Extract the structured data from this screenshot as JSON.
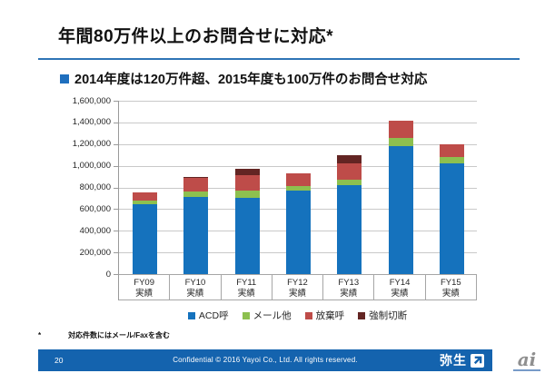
{
  "slide": {
    "title": "年間80万件以上のお問合せに対応*",
    "subtitle": "2014年度は120万件超、2015年度も100万件のお問合せ対応",
    "footnote_mark": "*",
    "footnote": "対応件数にはメール/Faxを含む",
    "footer": {
      "page_number": "20",
      "confidential": "Confidential  © 2016 Yayoi Co., Ltd.  All rights reserved.",
      "brand_logo_text": "弥生"
    },
    "watermark": "ai"
  },
  "colors": {
    "title_rule": "#2e74b5",
    "subtitle_bullet": "#1f6fbe",
    "footer_bar": "#1463ae",
    "gridline": "#c9c9c9",
    "axis": "#9a9a9a"
  },
  "chart_data": {
    "type": "bar",
    "stacked": true,
    "title": "",
    "xlabel": "",
    "ylabel": "",
    "categories": [
      "FY09",
      "FY10",
      "FY11",
      "FY12",
      "FY13",
      "FY14",
      "FY15"
    ],
    "category_sublabel": "実績",
    "series": [
      {
        "name": "ACD呼",
        "color": "#1572bd",
        "values": [
          645000,
          715000,
          700000,
          770000,
          820000,
          1180000,
          1025000
        ]
      },
      {
        "name": "メール他",
        "color": "#8dc04f",
        "values": [
          35000,
          50000,
          75000,
          40000,
          50000,
          80000,
          60000
        ]
      },
      {
        "name": "放棄呼",
        "color": "#be4c49",
        "values": [
          75000,
          120000,
          135000,
          120000,
          150000,
          160000,
          115000
        ]
      },
      {
        "name": "強制切断",
        "color": "#632523",
        "values": [
          0,
          15000,
          60000,
          0,
          80000,
          0,
          0
        ]
      }
    ],
    "totals": [
      755000,
      900000,
      970000,
      930000,
      1100000,
      1420000,
      1200000
    ],
    "ylim": [
      0,
      1600000
    ],
    "ytick_step": 200000,
    "ytick_labels": [
      "1,600,000",
      "1,400,000",
      "1,200,000",
      "1,000,000",
      "800,000",
      "600,000",
      "400,000",
      "200,000",
      "0"
    ],
    "grid": true,
    "legend_position": "bottom"
  }
}
